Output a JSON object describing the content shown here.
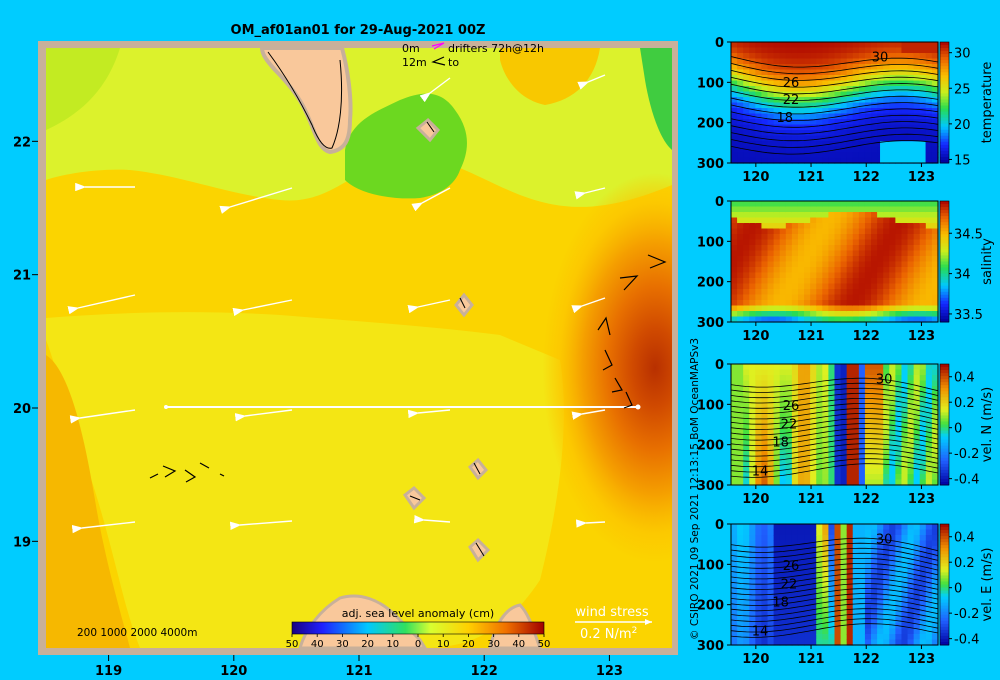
{
  "title": "OM_af01an01 for 29-Aug-2021 00Z",
  "credit": "© CSIRO 2021   09 Sep 2021 12:13:15 BoM OceanMAPSv3",
  "drifter_legend": {
    "row1_depth": "0m",
    "row1_text": "drifters 72h@12h",
    "row2_depth": "12m",
    "row2_text": "to"
  },
  "depth_legend": "200  1000  2000  4000m",
  "wind_legend": {
    "title": "wind stress",
    "value": "0.2 N/m",
    "superscript": "2"
  },
  "colors": {
    "background": "#00ccff",
    "land": "#f9c89b",
    "coast_gray": "#c8b09a"
  },
  "chart_data": [
    {
      "type": "heatmap",
      "name": "map",
      "xlim": [
        118.5,
        123.5
      ],
      "ylim": [
        18.2,
        22.7
      ],
      "x_ticks": [
        "119",
        "120",
        "121",
        "122",
        "123"
      ],
      "y_ticks": [
        "19",
        "20",
        "21",
        "22"
      ],
      "colorbar": {
        "label": "adj. sea level anomaly (cm)",
        "ticks": [
          "-50",
          "-40",
          "-30",
          "-20",
          "-10",
          "0",
          "10",
          "20",
          "30",
          "40",
          "50"
        ],
        "range": [
          -50,
          50
        ]
      },
      "section_line": {
        "lat": 20.0,
        "lon_start": 119.5,
        "lon_end": 123.0
      },
      "eddy_center": {
        "lon": 123.4,
        "lat": 20.5,
        "anomaly_cm": 45
      }
    },
    {
      "type": "heatmap",
      "name": "section",
      "variable": "temperature",
      "x_ticks": [
        "120",
        "121",
        "122",
        "123"
      ],
      "y_ticks": [
        "0",
        "100",
        "200",
        "300"
      ],
      "ylim": [
        300,
        0
      ],
      "cb_range": [
        14.5,
        31.5
      ],
      "cb_ticks": [
        "30",
        "25",
        "20",
        "15"
      ],
      "contour_labels": [
        "30",
        "26",
        "22",
        "18"
      ]
    },
    {
      "type": "heatmap",
      "name": "section",
      "variable": "salinity",
      "x_ticks": [
        "120",
        "121",
        "122",
        "123"
      ],
      "y_ticks": [
        "0",
        "100",
        "200",
        "300"
      ],
      "ylim": [
        300,
        0
      ],
      "cb_range": [
        33.4,
        34.9
      ],
      "cb_ticks": [
        "34.5",
        "34",
        "33.5"
      ],
      "contour_labels": []
    },
    {
      "type": "heatmap",
      "name": "section",
      "variable": "vel. N (m/s)",
      "x_ticks": [
        "120",
        "121",
        "122",
        "123"
      ],
      "y_ticks": [
        "0",
        "100",
        "200",
        "300"
      ],
      "ylim": [
        300,
        0
      ],
      "cb_range": [
        -0.45,
        0.5
      ],
      "cb_ticks": [
        "0.4",
        "0.2",
        "0",
        "-0.2",
        "-0.4"
      ],
      "contour_labels": [
        "30",
        "26",
        "22",
        "18",
        "14"
      ]
    },
    {
      "type": "heatmap",
      "name": "section",
      "variable": "vel. E (m/s)",
      "x_ticks": [
        "120",
        "121",
        "122",
        "123"
      ],
      "y_ticks": [
        "0",
        "100",
        "200",
        "300"
      ],
      "ylim": [
        300,
        0
      ],
      "cb_range": [
        -0.45,
        0.5
      ],
      "cb_ticks": [
        "0.4",
        "0.2",
        "0",
        "-0.2",
        "-0.4"
      ],
      "contour_labels": [
        "30",
        "26",
        "22",
        "18",
        "14"
      ]
    }
  ]
}
